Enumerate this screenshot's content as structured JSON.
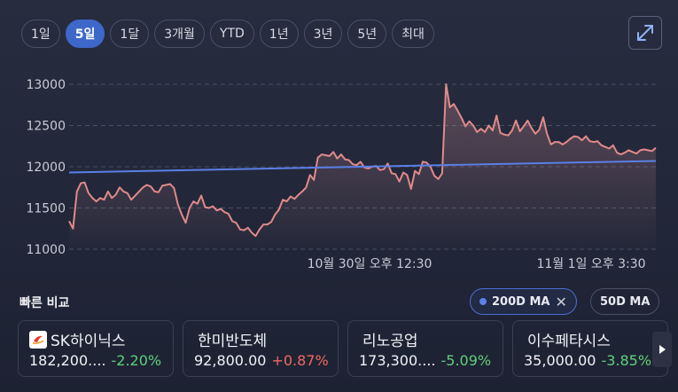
{
  "range_tabs": [
    {
      "label": "1일",
      "active": false
    },
    {
      "label": "5일",
      "active": true
    },
    {
      "label": "1달",
      "active": false
    },
    {
      "label": "3개월",
      "active": false
    },
    {
      "label": "YTD",
      "active": false
    },
    {
      "label": "1년",
      "active": false
    },
    {
      "label": "3년",
      "active": false
    },
    {
      "label": "5년",
      "active": false
    },
    {
      "label": "최대",
      "active": false
    }
  ],
  "expand_icon": "expand-icon",
  "chart_data": {
    "type": "line",
    "y_ticks": [
      "13000",
      "12500",
      "12000",
      "11500",
      "11000"
    ],
    "ylim": [
      11000,
      13000
    ],
    "x_ticks": [
      "10월 30일 오후 12:30",
      "11월 1일 오후 3:30"
    ],
    "grid": true,
    "colors": {
      "price": "#e08a8a",
      "ma": "#5b7fe6"
    },
    "series": [
      {
        "values": [
          11340,
          11250,
          11700,
          11800,
          11810,
          11680,
          11620,
          11580,
          11620,
          11600,
          11700,
          11620,
          11660,
          11750,
          11700,
          11680,
          11600,
          11650,
          11700,
          11750,
          11780,
          11760,
          11700,
          11690,
          11770,
          11780,
          11790,
          11740,
          11540,
          11420,
          11320,
          11500,
          11580,
          11550,
          11650,
          11510,
          11500,
          11520,
          11470,
          11490,
          11450,
          11430,
          11340,
          11320,
          11240,
          11230,
          11260,
          11200,
          11160,
          11240,
          11300,
          11300,
          11330,
          11420,
          11480,
          11600,
          11580,
          11640,
          11610,
          11660,
          11700,
          11750,
          11900,
          11840,
          12110,
          12150,
          12140,
          12130,
          12180,
          12100,
          12150,
          12090,
          12080,
          12030,
          12020,
          12060,
          11990,
          11980,
          12000,
          12010,
          11960,
          11970,
          12040,
          11920,
          11910,
          11820,
          11930,
          11900,
          11730,
          11950,
          11910,
          12060,
          12050,
          12000,
          11890,
          11850,
          11920,
          13000,
          12720,
          12760,
          12680,
          12590,
          12490,
          12550,
          12500,
          12420,
          12460,
          12420,
          12500,
          12440,
          12620,
          12410,
          12390,
          12380,
          12440,
          12560,
          12430,
          12490,
          12560,
          12470,
          12400,
          12450,
          12600,
          12400,
          12270,
          12300,
          12300,
          12270,
          12300,
          12340,
          12370,
          12360,
          12320,
          12370,
          12310,
          12300,
          12310,
          12260,
          12240,
          12220,
          12260,
          12170,
          12150,
          12170,
          12200,
          12180,
          12160,
          12200,
          12210,
          12200,
          12190,
          12230
        ]
      },
      {
        "values": [
          11930,
          12070
        ]
      }
    ]
  },
  "compare": {
    "title": "빠른 비교",
    "ma_200_label": "200D MA",
    "ma_50_label": "50D MA",
    "cards": [
      {
        "name": "SK하이닉스",
        "price": "182,200....",
        "change": "-2.20%",
        "direction": "down"
      },
      {
        "name": "한미반도체",
        "price": "92,800.00",
        "change": "+0.87%",
        "direction": "up"
      },
      {
        "name": "리노공업",
        "price": "173,300....",
        "change": "-5.09%",
        "direction": "down"
      },
      {
        "name": "이수페타시스",
        "price": "35,000.00",
        "change": "-3.85%",
        "direction": "down"
      }
    ]
  }
}
